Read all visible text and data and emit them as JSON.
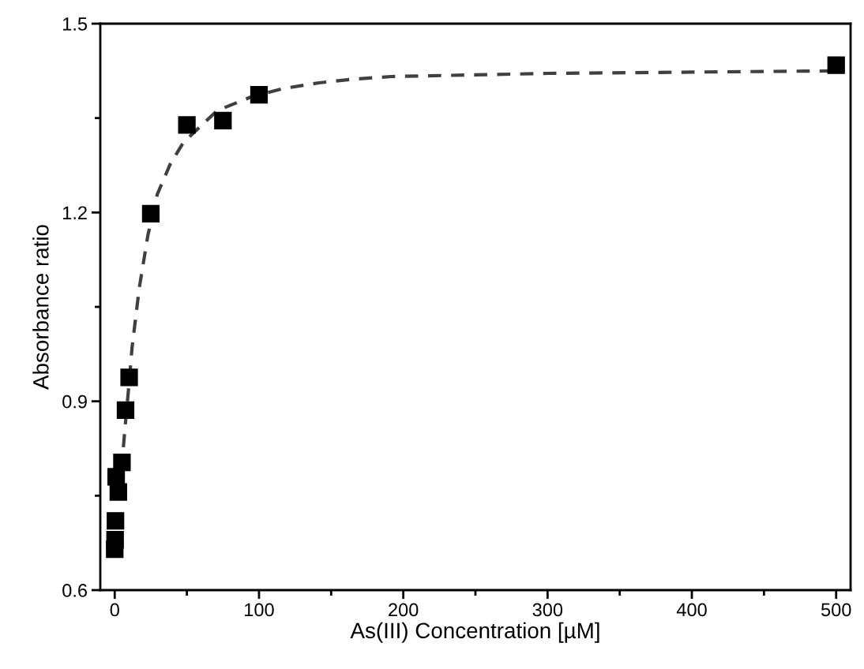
{
  "chart_data": {
    "type": "scatter",
    "xlabel": "As(III) Concentration [µM]",
    "ylabel": "Absorbance ratio",
    "xlim": [
      -10,
      510
    ],
    "ylim": [
      0.6,
      1.5
    ],
    "xticks": [
      0,
      {
        "value": 50,
        "label": null
      },
      100,
      {
        "value": 150,
        "label": null
      },
      200,
      {
        "value": 250,
        "label": null
      },
      300,
      {
        "value": 350,
        "label": null
      },
      400,
      {
        "value": 450,
        "label": null
      },
      500
    ],
    "yticks": [
      0.6,
      {
        "value": 0.75,
        "label": null
      },
      0.9,
      {
        "value": 1.05,
        "label": null
      },
      1.2,
      {
        "value": 1.35,
        "label": null
      },
      1.5
    ],
    "grid": false,
    "series": [
      {
        "type": "line",
        "color": "#404040",
        "line_style": "dashed",
        "marker": "none",
        "x": [
          6,
          7.5,
          10,
          12,
          17,
          23,
          29.5,
          38.5,
          47.5,
          71,
          95,
          117,
          141.5,
          166,
          192,
          300,
          400,
          500
        ],
        "values": [
          0.827,
          0.867,
          0.93,
          0.985,
          1.08,
          1.164,
          1.229,
          1.277,
          1.311,
          1.362,
          1.384,
          1.397,
          1.406,
          1.412,
          1.416,
          1.421,
          1.423,
          1.425
        ]
      },
      {
        "color": "#000000",
        "marker": "square",
        "x": [
          0,
          0.25,
          0.5,
          1,
          2.5,
          5,
          7.5,
          10,
          25,
          50,
          75,
          100,
          500
        ],
        "values": [
          0.665,
          0.68,
          0.71,
          0.78,
          0.756,
          0.803,
          0.886,
          0.938,
          1.198,
          1.339,
          1.346,
          1.387,
          1.434
        ]
      }
    ]
  }
}
